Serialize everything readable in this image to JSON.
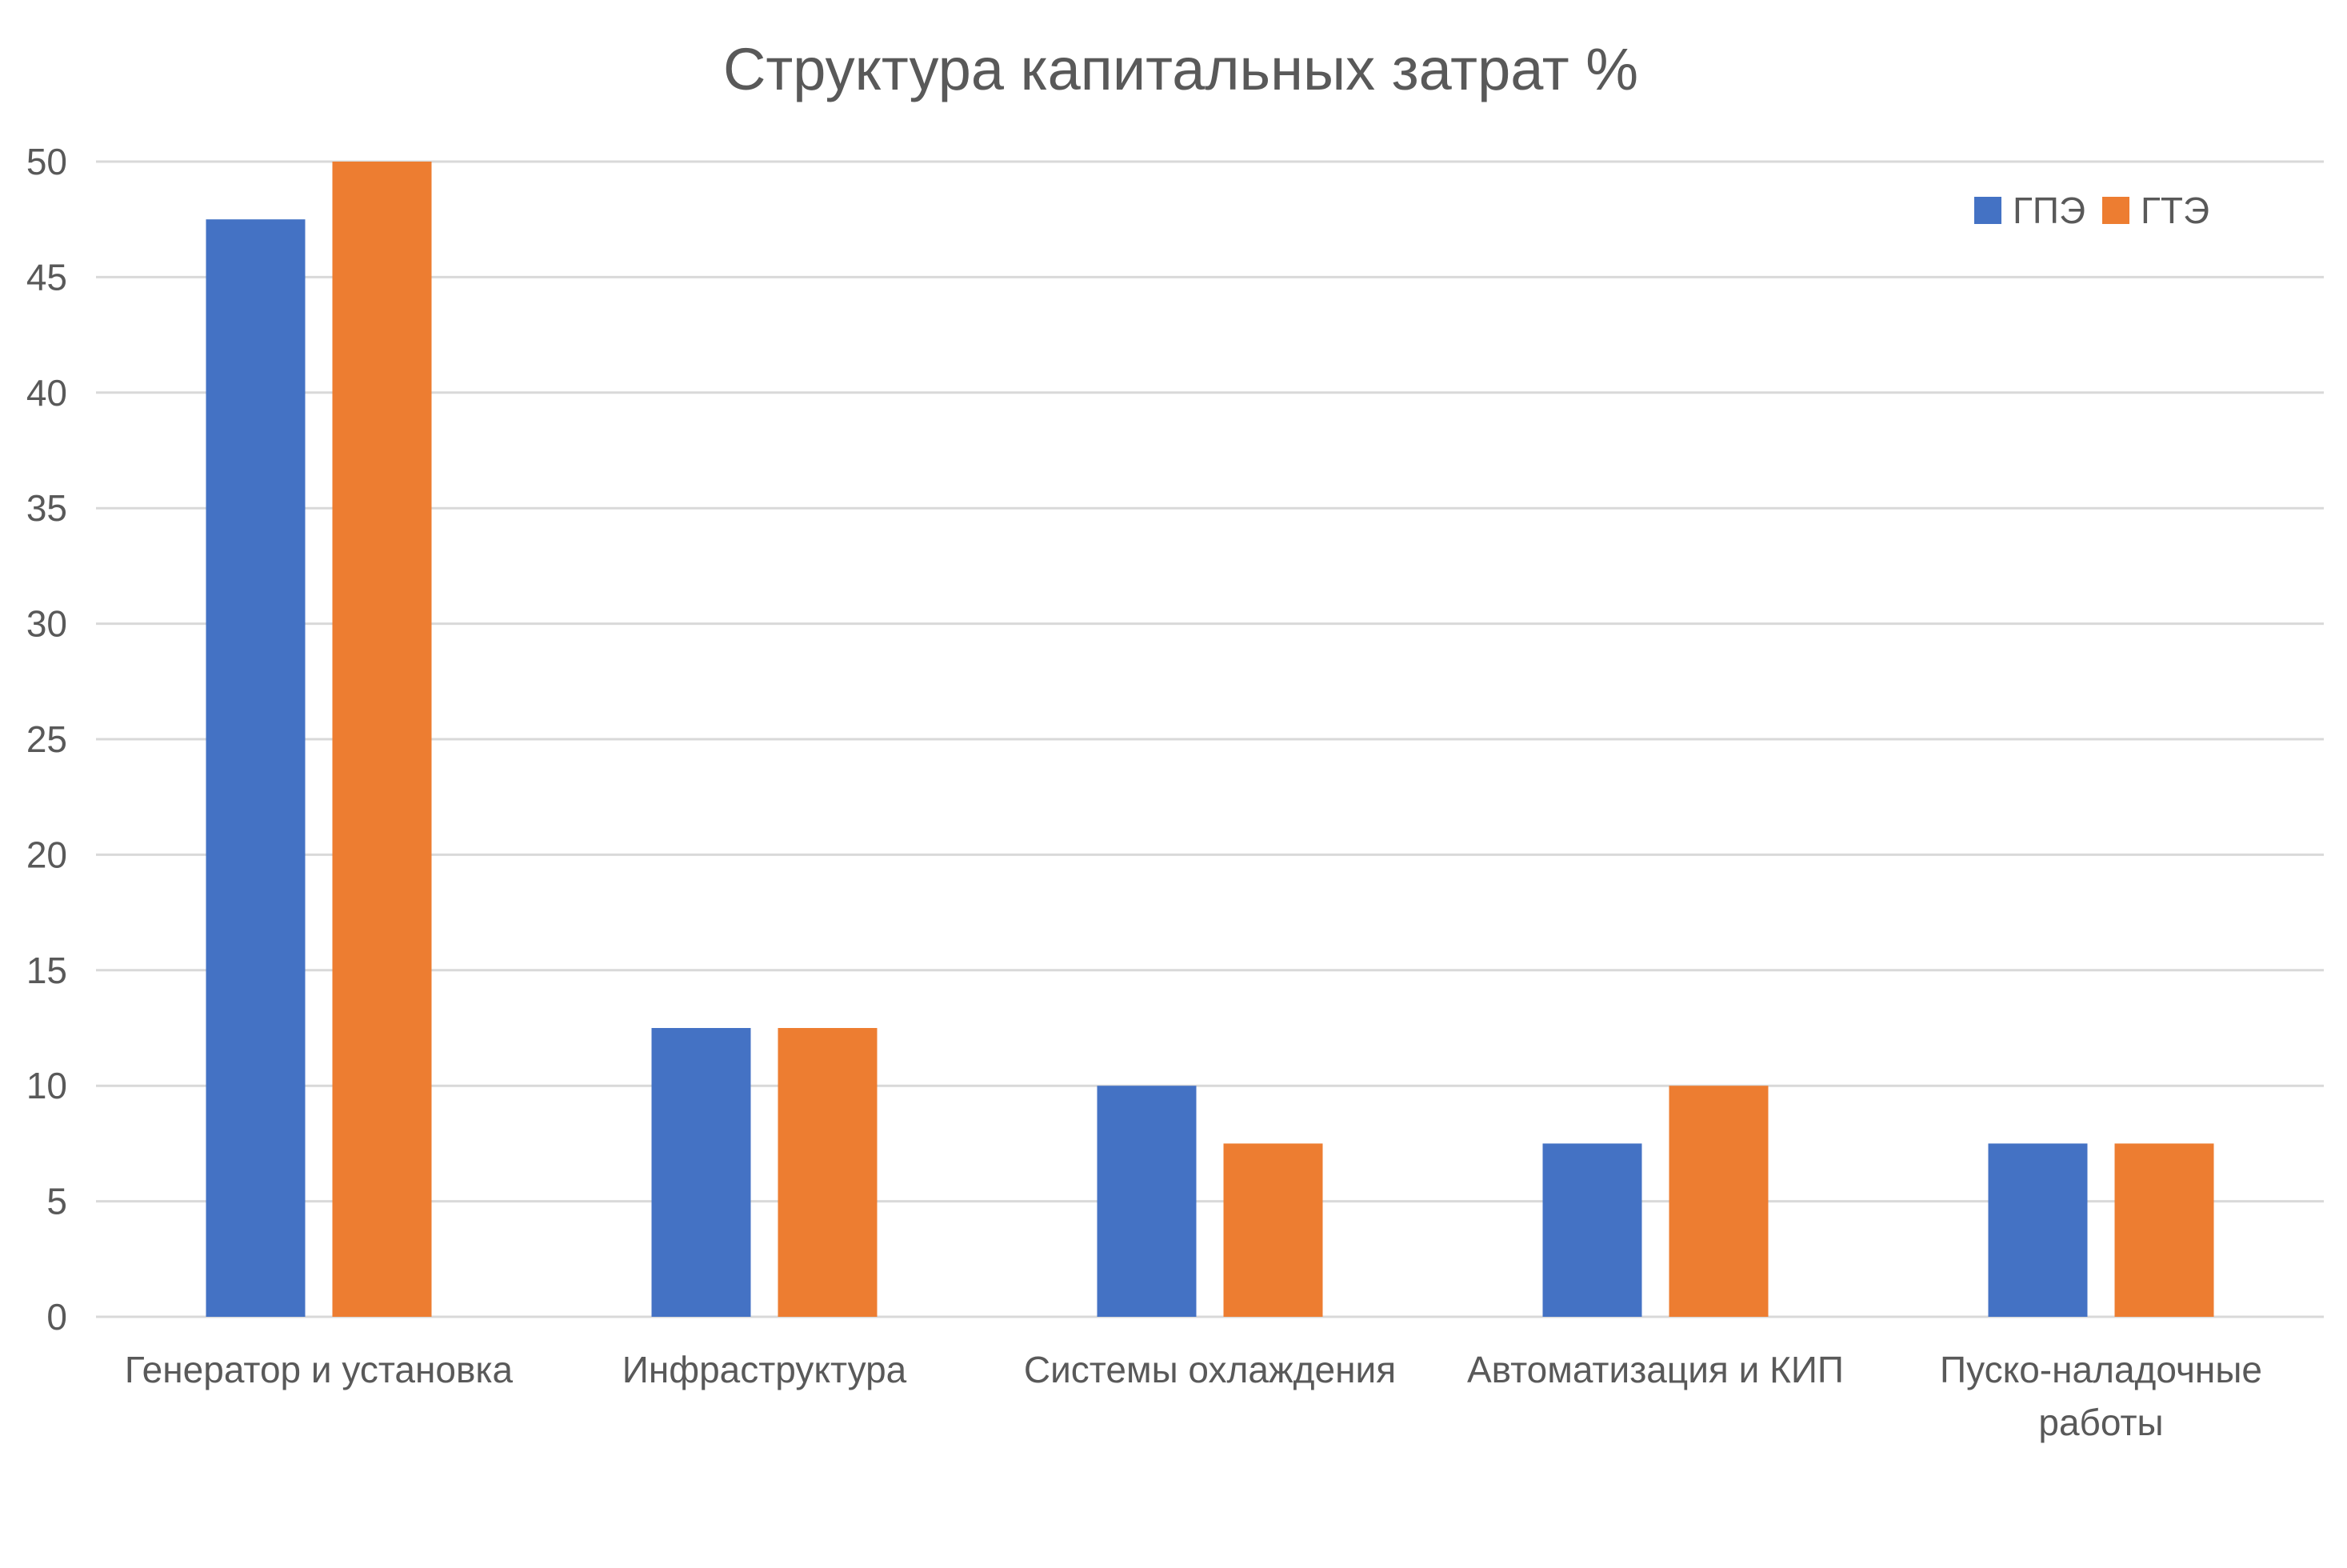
{
  "chart_data": {
    "type": "bar",
    "title": "Структура капитальных затрат %",
    "xlabel": "",
    "ylabel": "",
    "categories": [
      [
        "Генератор и установка"
      ],
      [
        "Инфраструктура"
      ],
      [
        "Системы охлаждения"
      ],
      [
        "Автоматизация и КИП"
      ],
      [
        "Пуско-наладочные",
        "работы"
      ]
    ],
    "series": [
      {
        "name": "ГПЭ",
        "color": "#4472C4",
        "values": [
          47.5,
          12.5,
          10,
          7.5,
          7.5
        ]
      },
      {
        "name": "ГТЭ",
        "color": "#ED7D31",
        "values": [
          50,
          12.5,
          7.5,
          10,
          7.5
        ]
      }
    ],
    "ylim": [
      0,
      50
    ],
    "yticks": [
      0,
      5,
      10,
      15,
      20,
      25,
      30,
      35,
      40,
      45,
      50
    ],
    "grid": true,
    "legend_position": "top-right"
  }
}
